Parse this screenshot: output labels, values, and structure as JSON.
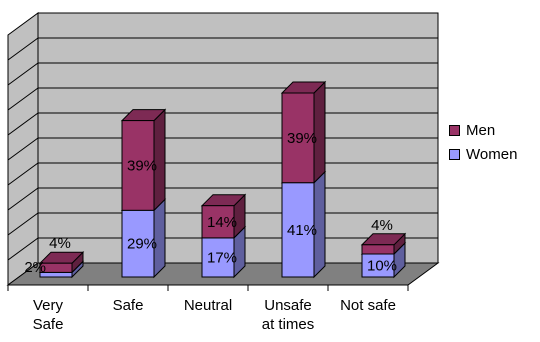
{
  "chart_data": {
    "type": "bar",
    "stacked": true,
    "three_d": true,
    "categories": [
      "Very Safe",
      "Safe",
      "Neutral",
      "Unsafe at times",
      "Not safe"
    ],
    "category_lines": [
      [
        "Very",
        "Safe"
      ],
      [
        "Safe"
      ],
      [
        "Neutral"
      ],
      [
        "Unsafe",
        "at times"
      ],
      [
        "Not safe"
      ]
    ],
    "series": [
      {
        "name": "Women",
        "values": [
          2,
          29,
          17,
          41,
          10
        ],
        "labels": [
          "2%",
          "29%",
          "17%",
          "41%",
          "10%"
        ],
        "color": "#9999FF"
      },
      {
        "name": "Men",
        "values": [
          4,
          39,
          14,
          39,
          4
        ],
        "labels": [
          "4%",
          "39%",
          "14%",
          "39%",
          "4%"
        ],
        "color": "#993366"
      }
    ],
    "ylim": [
      0,
      100
    ],
    "grid": true,
    "legend_position": "right",
    "wall_color": "#C0C0C0",
    "floor_color": "#808080"
  }
}
